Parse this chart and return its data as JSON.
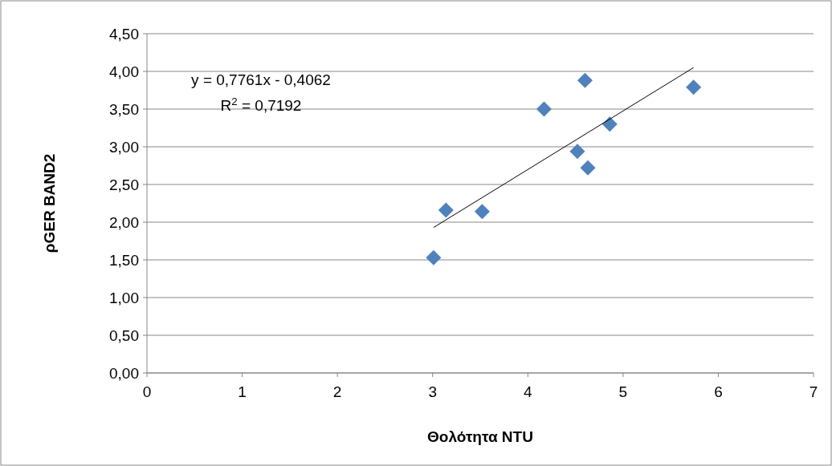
{
  "chart_data": {
    "type": "scatter",
    "xlabel": "Θολότητα NTU",
    "ylabel": "ρGER BAND2",
    "xlim": [
      0,
      7
    ],
    "xticks": [
      0,
      1,
      2,
      3,
      4,
      5,
      6,
      7
    ],
    "ylim": [
      0,
      4.5
    ],
    "yticks": [
      {
        "value": 0,
        "label": "0,00"
      },
      {
        "value": 0.5,
        "label": "0,50"
      },
      {
        "value": 1,
        "label": "1,00"
      },
      {
        "value": 1.5,
        "label": "1,50"
      },
      {
        "value": 2,
        "label": "2,00"
      },
      {
        "value": 2.5,
        "label": "2,50"
      },
      {
        "value": 3,
        "label": "3,00"
      },
      {
        "value": 3.5,
        "label": "3,50"
      },
      {
        "value": 4,
        "label": "4,00"
      },
      {
        "value": 4.5,
        "label": "4,50"
      }
    ],
    "grid": "y",
    "marker": "diamond",
    "series": [
      {
        "color": "#4f81bd",
        "x": [
          3.01,
          3.14,
          3.52,
          4.17,
          4.52,
          4.6,
          4.63,
          4.86,
          5.74
        ],
        "values": [
          1.53,
          2.16,
          2.14,
          3.5,
          2.94,
          3.88,
          2.72,
          3.3,
          3.79
        ]
      },
      {
        "type": "line",
        "color": "#000000",
        "marker": "none",
        "x": [
          3.01,
          5.74
        ],
        "values": [
          1.93,
          4.05
        ]
      }
    ],
    "annotations": [
      "y = 0,7761x - 0,4062",
      "R$^{2}$ = 0,7192"
    ]
  }
}
